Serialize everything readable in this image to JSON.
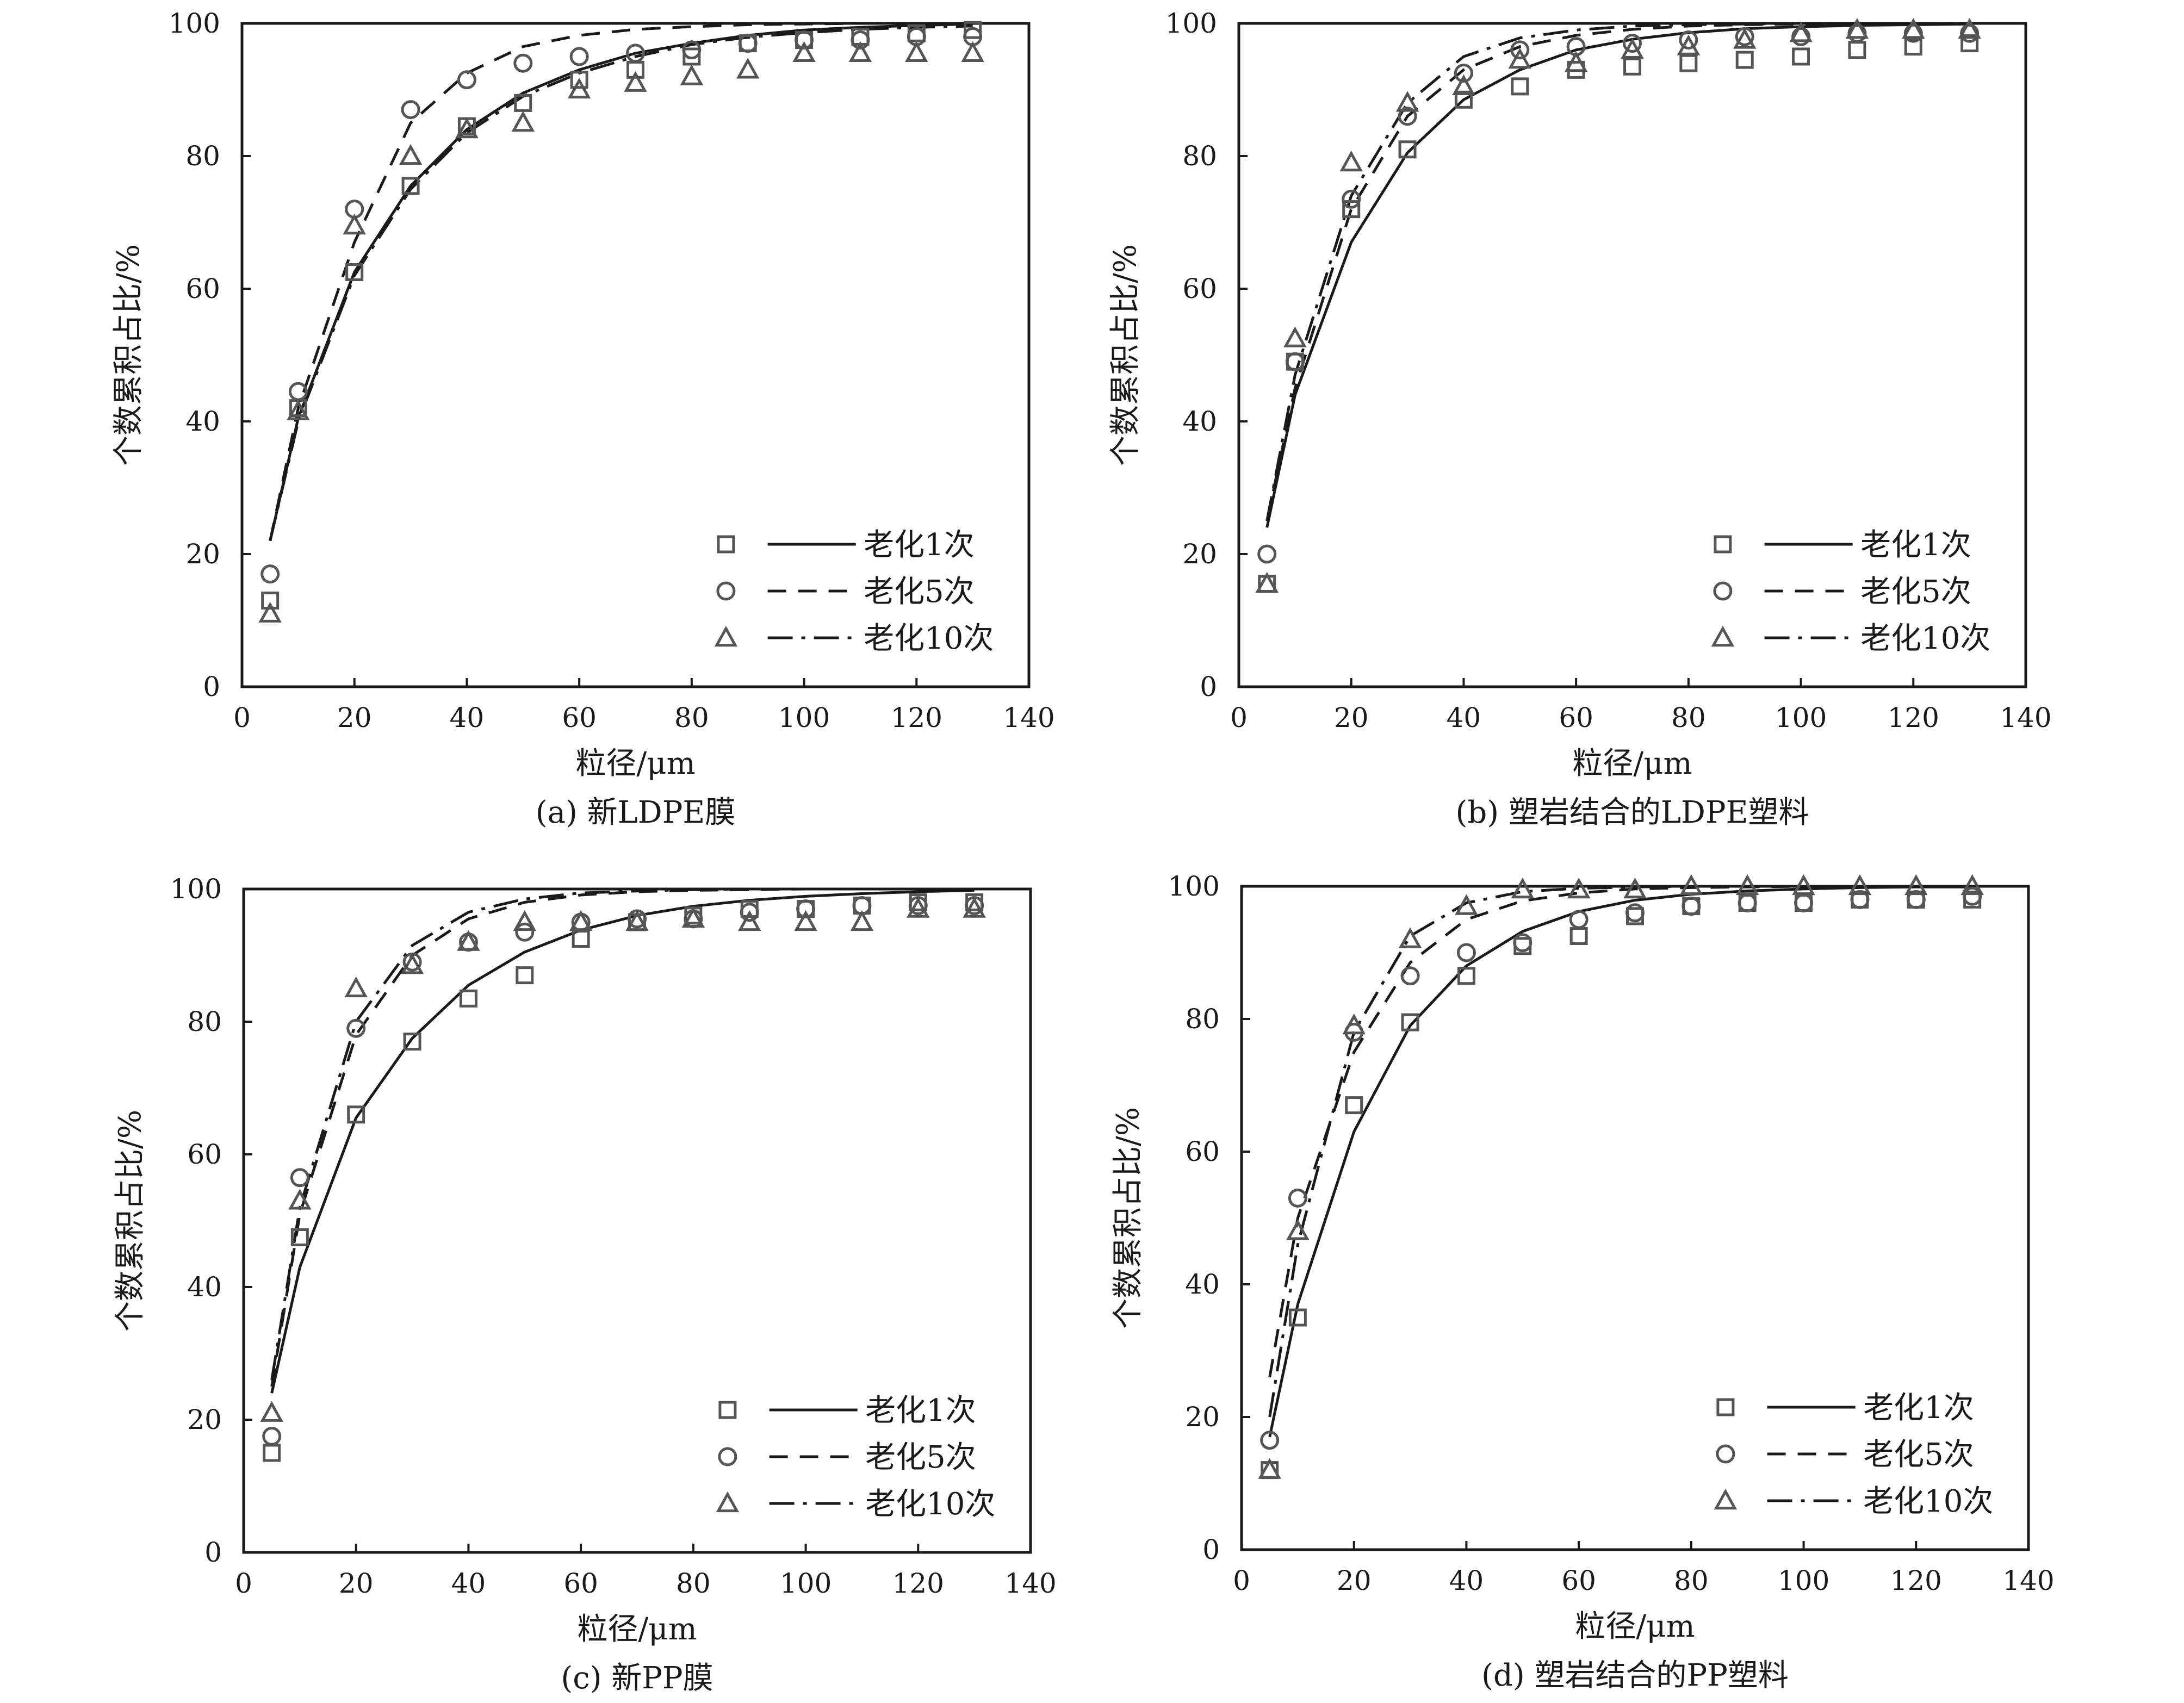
{
  "chart_data": [
    {
      "type": "scatter",
      "caption": "(a) 新LDPE膜",
      "xlabel": "粒径/μm",
      "ylabel": "个数累积占比/%",
      "xlim": [
        0,
        140
      ],
      "ylim": [
        0,
        100
      ],
      "xticks": [
        "0",
        "20",
        "40",
        "60",
        "80",
        "100",
        "120",
        "140"
      ],
      "yticks": [
        "0",
        "20",
        "40",
        "60",
        "80",
        "100"
      ],
      "legend_position": "bottom-right",
      "series": [
        {
          "name": "老化1次",
          "marker": "square",
          "line": "solid",
          "x": [
            5,
            10,
            20,
            30,
            40,
            50,
            60,
            70,
            80,
            90,
            100,
            110,
            120,
            130
          ],
          "y": [
            13,
            42,
            62.5,
            75.5,
            84.5,
            88,
            91.5,
            93,
            95,
            97,
            97.5,
            98,
            98.5,
            99
          ],
          "fit_y": [
            22,
            40.5,
            62.5,
            75.5,
            84,
            89.5,
            93,
            95.5,
            97,
            98.2,
            99,
            99.4,
            99.7,
            99.9
          ]
        },
        {
          "name": "老化5次",
          "marker": "circle",
          "line": "dashed",
          "x": [
            5,
            10,
            20,
            30,
            40,
            50,
            60,
            70,
            80,
            90,
            100,
            110,
            120,
            130
          ],
          "y": [
            17,
            44.5,
            72,
            87,
            91.5,
            94,
            95,
            95.5,
            96,
            97,
            97.5,
            97.5,
            98,
            98
          ],
          "fit_y": [
            22,
            42,
            67,
            85,
            92.5,
            96.5,
            98.2,
            99.1,
            99.5,
            99.8,
            99.9,
            100,
            100,
            100
          ]
        },
        {
          "name": "老化10次",
          "marker": "triangle",
          "line": "dashdot",
          "x": [
            5,
            10,
            20,
            30,
            40,
            50,
            60,
            70,
            80,
            90,
            100,
            110,
            120,
            130
          ],
          "y": [
            11,
            41.5,
            69.5,
            80,
            84,
            85,
            90,
            91,
            92,
            93,
            95.5,
            95.5,
            95.5,
            95.5
          ],
          "fit_y": [
            22,
            40,
            62,
            75,
            83.5,
            89,
            92.5,
            95,
            96.8,
            97.9,
            98.6,
            99.1,
            99.4,
            99.6
          ]
        }
      ]
    },
    {
      "type": "scatter",
      "caption": "(b) 塑岩结合的LDPE塑料",
      "xlabel": "粒径/μm",
      "ylabel": "个数累积占比/%",
      "xlim": [
        0,
        140
      ],
      "ylim": [
        0,
        100
      ],
      "xticks": [
        "0",
        "20",
        "40",
        "60",
        "80",
        "100",
        "120",
        "140"
      ],
      "yticks": [
        "0",
        "20",
        "40",
        "60",
        "80",
        "100"
      ],
      "legend_position": "bottom-right",
      "series": [
        {
          "name": "老化1次",
          "marker": "square",
          "line": "solid",
          "x": [
            5,
            10,
            20,
            30,
            40,
            50,
            60,
            70,
            80,
            90,
            100,
            110,
            120,
            130
          ],
          "y": [
            15.5,
            49,
            72,
            81,
            88.5,
            90.5,
            93,
            93.5,
            94,
            94.5,
            95,
            96,
            96.5,
            97
          ],
          "fit_y": [
            24,
            44,
            67,
            80.5,
            88.5,
            93,
            96,
            97.6,
            98.6,
            99.2,
            99.5,
            99.7,
            99.8,
            99.9
          ]
        },
        {
          "name": "老化5次",
          "marker": "circle",
          "line": "dashed",
          "x": [
            5,
            10,
            20,
            30,
            40,
            50,
            60,
            70,
            80,
            90,
            100,
            110,
            120,
            130
          ],
          "y": [
            20,
            49,
            73.5,
            86,
            92.5,
            96,
            96.5,
            97,
            97.5,
            98,
            98,
            98.5,
            98.5,
            98.5
          ],
          "fit_y": [
            25,
            45,
            72,
            86,
            93,
            96.5,
            98.2,
            99.1,
            99.6,
            99.8,
            99.9,
            100,
            100,
            100
          ]
        },
        {
          "name": "老化10次",
          "marker": "triangle",
          "line": "dashdot",
          "x": [
            5,
            10,
            20,
            30,
            40,
            50,
            60,
            70,
            80,
            90,
            100,
            110,
            120,
            130
          ],
          "y": [
            15.5,
            52.5,
            79,
            88,
            90.5,
            94.5,
            94,
            96,
            96.5,
            97.5,
            98.5,
            99,
            99,
            99
          ],
          "fit_y": [
            25,
            47,
            74,
            88,
            95,
            97.8,
            99,
            99.6,
            99.8,
            99.9,
            100,
            100,
            100,
            100
          ]
        }
      ]
    },
    {
      "type": "scatter",
      "caption": "(c) 新PP膜",
      "xlabel": "粒径/μm",
      "ylabel": "个数累积占比/%",
      "xlim": [
        0,
        140
      ],
      "ylim": [
        0,
        100
      ],
      "xticks": [
        "0",
        "20",
        "40",
        "60",
        "80",
        "100",
        "120",
        "140"
      ],
      "yticks": [
        "0",
        "20",
        "40",
        "60",
        "80",
        "100"
      ],
      "legend_position": "bottom-right",
      "series": [
        {
          "name": "老化1次",
          "marker": "square",
          "line": "solid",
          "x": [
            5,
            10,
            20,
            30,
            40,
            50,
            60,
            70,
            80,
            90,
            100,
            110,
            120,
            130
          ],
          "y": [
            15,
            47.5,
            66,
            77,
            83.5,
            87,
            92.5,
            95,
            96,
            97,
            97,
            97.5,
            98,
            98
          ],
          "fit_y": [
            24,
            43,
            65.5,
            77.5,
            85.5,
            90.5,
            93.8,
            96,
            97.4,
            98.3,
            98.9,
            99.3,
            99.6,
            99.8
          ]
        },
        {
          "name": "老化5次",
          "marker": "circle",
          "line": "dashed",
          "x": [
            5,
            10,
            20,
            30,
            40,
            50,
            60,
            70,
            80,
            90,
            100,
            110,
            120,
            130
          ],
          "y": [
            17.5,
            56.5,
            79,
            89,
            92,
            93.5,
            95,
            95.5,
            95.5,
            96.5,
            97,
            97.5,
            97.5,
            97.5
          ],
          "fit_y": [
            25,
            51,
            78,
            90,
            95.5,
            98,
            99.1,
            99.6,
            99.8,
            99.9,
            100,
            100,
            100,
            100
          ]
        },
        {
          "name": "老化10次",
          "marker": "triangle",
          "line": "dashdot",
          "x": [
            5,
            10,
            20,
            30,
            40,
            50,
            60,
            70,
            80,
            90,
            100,
            110,
            120,
            130
          ],
          "y": [
            21,
            53,
            85,
            88.5,
            92,
            95,
            95,
            95,
            95.5,
            95,
            95,
            95,
            97,
            97
          ],
          "fit_y": [
            26,
            52,
            80,
            91.5,
            96.5,
            98.5,
            99.4,
            99.7,
            99.9,
            100,
            100,
            100,
            100,
            100
          ]
        }
      ]
    },
    {
      "type": "scatter",
      "caption": "(d) 塑岩结合的PP塑料",
      "xlabel": "粒径/μm",
      "ylabel": "个数累积占比/%",
      "xlim": [
        0,
        140
      ],
      "ylim": [
        0,
        100
      ],
      "xticks": [
        "0",
        "20",
        "40",
        "60",
        "80",
        "100",
        "120",
        "140"
      ],
      "yticks": [
        "0",
        "20",
        "40",
        "60",
        "80",
        "100"
      ],
      "legend_position": "bottom-right",
      "series": [
        {
          "name": "老化1次",
          "marker": "square",
          "line": "solid",
          "x": [
            5,
            10,
            20,
            30,
            40,
            50,
            60,
            70,
            80,
            90,
            100,
            110,
            120,
            130
          ],
          "y": [
            12,
            35,
            67,
            79.5,
            86.5,
            91,
            92.5,
            95.5,
            97,
            97.5,
            97.5,
            98,
            98,
            98
          ],
          "fit_y": [
            17,
            37,
            63,
            79,
            88,
            93.2,
            96.2,
            97.9,
            98.8,
            99.3,
            99.6,
            99.8,
            99.9,
            99.9
          ]
        },
        {
          "name": "老化5次",
          "marker": "circle",
          "line": "dashed",
          "x": [
            5,
            10,
            20,
            30,
            40,
            50,
            60,
            70,
            80,
            90,
            100,
            110,
            120,
            130
          ],
          "y": [
            16.5,
            53,
            78,
            86.5,
            90,
            91.5,
            95,
            96,
            97,
            97.5,
            97.5,
            98,
            98,
            98.5
          ],
          "fit_y": [
            26,
            50,
            75,
            88.5,
            95,
            97.8,
            99,
            99.6,
            99.8,
            99.9,
            100,
            100,
            100,
            100
          ]
        },
        {
          "name": "老化10次",
          "marker": "triangle",
          "line": "dashdot",
          "x": [
            5,
            10,
            20,
            30,
            40,
            50,
            60,
            70,
            80,
            90,
            100,
            110,
            120,
            130
          ],
          "y": [
            12,
            48,
            79,
            92,
            97,
            99.5,
            99.5,
            99.5,
            100,
            100,
            100,
            100,
            100,
            100
          ],
          "fit_y": [
            20,
            46,
            78,
            92.5,
            97.5,
            99.2,
            99.7,
            99.9,
            100,
            100,
            100,
            100,
            100,
            100
          ]
        }
      ]
    }
  ]
}
